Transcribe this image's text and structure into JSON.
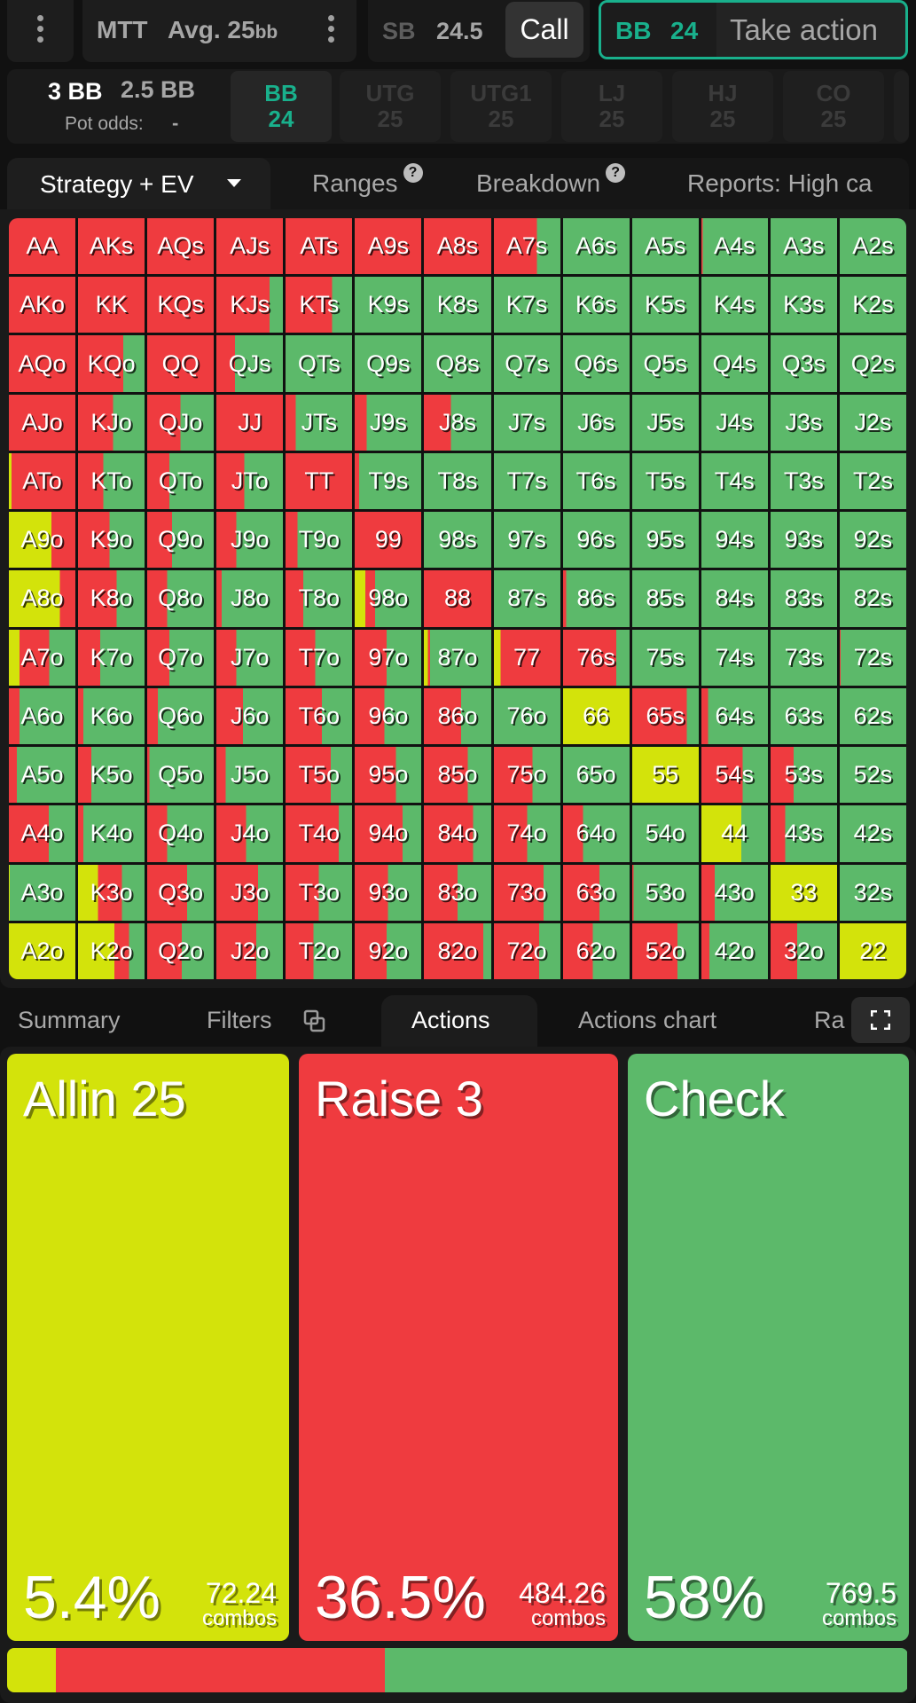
{
  "header": {
    "game_type": "MTT",
    "avg_stack": "Avg. 25",
    "avg_unit": "bb",
    "sb_label": "SB",
    "sb_stack": "24.5",
    "sb_action": "Call",
    "bb_label": "BB",
    "bb_stack": "24",
    "bb_action": "Take action"
  },
  "pot": {
    "pot_size": "3 BB",
    "to_call": "2.5 BB",
    "pot_odds_label": "Pot odds:",
    "pot_odds_value": "-"
  },
  "positions": [
    {
      "name": "BB",
      "stack": "24",
      "active": true
    },
    {
      "name": "UTG",
      "stack": "25",
      "active": false
    },
    {
      "name": "UTG1",
      "stack": "25",
      "active": false
    },
    {
      "name": "LJ",
      "stack": "25",
      "active": false
    },
    {
      "name": "HJ",
      "stack": "25",
      "active": false
    },
    {
      "name": "CO",
      "stack": "25",
      "active": false
    }
  ],
  "tabs": {
    "strategy": "Strategy + EV",
    "ranges": "Ranges",
    "breakdown": "Breakdown",
    "reports": "Reports: High ca",
    "help": "?"
  },
  "colors": {
    "allin": "#d3e30b",
    "raise": "#ef3b3f",
    "check": "#5cb96a",
    "accent": "#19b08c"
  },
  "grid": [
    [
      [
        "AA",
        0,
        100,
        0
      ],
      [
        "AKs",
        0,
        100,
        0
      ],
      [
        "AQs",
        0,
        100,
        0
      ],
      [
        "AJs",
        0,
        100,
        0
      ],
      [
        "ATs",
        0,
        100,
        0
      ],
      [
        "A9s",
        0,
        100,
        0
      ],
      [
        "A8s",
        0,
        100,
        0
      ],
      [
        "A7s",
        0,
        65,
        35
      ],
      [
        "A6s",
        0,
        0,
        100
      ],
      [
        "A5s",
        0,
        0,
        100
      ],
      [
        "A4s",
        0,
        2,
        98
      ],
      [
        "A3s",
        0,
        0,
        100
      ],
      [
        "A2s",
        0,
        0,
        100
      ]
    ],
    [
      [
        "AKo",
        0,
        100,
        0
      ],
      [
        "KK",
        0,
        100,
        0
      ],
      [
        "KQs",
        0,
        100,
        0
      ],
      [
        "KJs",
        0,
        80,
        20
      ],
      [
        "KTs",
        0,
        70,
        30
      ],
      [
        "K9s",
        0,
        0,
        100
      ],
      [
        "K8s",
        0,
        0,
        100
      ],
      [
        "K7s",
        0,
        0,
        100
      ],
      [
        "K6s",
        0,
        0,
        100
      ],
      [
        "K5s",
        0,
        0,
        100
      ],
      [
        "K4s",
        0,
        0,
        100
      ],
      [
        "K3s",
        0,
        0,
        100
      ],
      [
        "K2s",
        0,
        0,
        100
      ]
    ],
    [
      [
        "AQo",
        0,
        100,
        0
      ],
      [
        "KQo",
        0,
        68,
        32
      ],
      [
        "QQ",
        0,
        100,
        0
      ],
      [
        "QJs",
        0,
        28,
        72
      ],
      [
        "QTs",
        0,
        0,
        100
      ],
      [
        "Q9s",
        0,
        0,
        100
      ],
      [
        "Q8s",
        0,
        0,
        100
      ],
      [
        "Q7s",
        0,
        0,
        100
      ],
      [
        "Q6s",
        0,
        0,
        100
      ],
      [
        "Q5s",
        0,
        0,
        100
      ],
      [
        "Q4s",
        0,
        0,
        100
      ],
      [
        "Q3s",
        0,
        0,
        100
      ],
      [
        "Q2s",
        0,
        0,
        100
      ]
    ],
    [
      [
        "AJo",
        0,
        100,
        0
      ],
      [
        "KJo",
        0,
        53,
        47
      ],
      [
        "QJo",
        0,
        50,
        50
      ],
      [
        "JJ",
        0,
        100,
        0
      ],
      [
        "JTs",
        0,
        15,
        85
      ],
      [
        "J9s",
        0,
        18,
        82
      ],
      [
        "J8s",
        0,
        40,
        60
      ],
      [
        "J7s",
        0,
        0,
        100
      ],
      [
        "J6s",
        0,
        0,
        100
      ],
      [
        "J5s",
        0,
        0,
        100
      ],
      [
        "J4s",
        0,
        0,
        100
      ],
      [
        "J3s",
        0,
        0,
        100
      ],
      [
        "J2s",
        0,
        0,
        100
      ]
    ],
    [
      [
        "ATo",
        4,
        96,
        0
      ],
      [
        "KTo",
        0,
        38,
        62
      ],
      [
        "QTo",
        0,
        33,
        67
      ],
      [
        "JTo",
        0,
        42,
        58
      ],
      [
        "TT",
        0,
        100,
        0
      ],
      [
        "T9s",
        0,
        7,
        93
      ],
      [
        "T8s",
        0,
        0,
        100
      ],
      [
        "T7s",
        0,
        0,
        100
      ],
      [
        "T6s",
        0,
        0,
        100
      ],
      [
        "T5s",
        0,
        0,
        100
      ],
      [
        "T4s",
        0,
        0,
        100
      ],
      [
        "T3s",
        0,
        0,
        100
      ],
      [
        "T2s",
        0,
        0,
        100
      ]
    ],
    [
      [
        "A9o",
        64,
        36,
        0
      ],
      [
        "K9o",
        0,
        47,
        53
      ],
      [
        "Q9o",
        0,
        37,
        63
      ],
      [
        "J9o",
        0,
        30,
        70
      ],
      [
        "T9o",
        0,
        18,
        82
      ],
      [
        "99",
        0,
        100,
        0
      ],
      [
        "98s",
        0,
        0,
        100
      ],
      [
        "97s",
        0,
        0,
        100
      ],
      [
        "96s",
        0,
        0,
        100
      ],
      [
        "95s",
        0,
        0,
        100
      ],
      [
        "94s",
        0,
        0,
        100
      ],
      [
        "93s",
        0,
        0,
        100
      ],
      [
        "92s",
        0,
        0,
        100
      ]
    ],
    [
      [
        "A8o",
        77,
        23,
        0
      ],
      [
        "K8o",
        0,
        58,
        42
      ],
      [
        "Q8o",
        0,
        30,
        70
      ],
      [
        "J8o",
        0,
        8,
        92
      ],
      [
        "T8o",
        0,
        27,
        73
      ],
      [
        "98o",
        16,
        15,
        69
      ],
      [
        "88",
        0,
        100,
        0
      ],
      [
        "87s",
        0,
        0,
        100
      ],
      [
        "86s",
        0,
        5,
        95
      ],
      [
        "85s",
        0,
        0,
        100
      ],
      [
        "84s",
        0,
        0,
        100
      ],
      [
        "83s",
        0,
        0,
        100
      ],
      [
        "82s",
        0,
        0,
        100
      ]
    ],
    [
      [
        "A7o",
        16,
        45,
        39
      ],
      [
        "K7o",
        0,
        33,
        67
      ],
      [
        "Q7o",
        0,
        33,
        67
      ],
      [
        "J7o",
        0,
        30,
        70
      ],
      [
        "T7o",
        0,
        45,
        55
      ],
      [
        "97o",
        0,
        48,
        52
      ],
      [
        "87o",
        6,
        3,
        91
      ],
      [
        "77",
        10,
        90,
        0
      ],
      [
        "76s",
        0,
        80,
        20
      ],
      [
        "75s",
        0,
        0,
        100
      ],
      [
        "74s",
        0,
        0,
        100
      ],
      [
        "73s",
        0,
        0,
        100
      ],
      [
        "72s",
        0,
        1,
        99
      ]
    ],
    [
      [
        "A6o",
        0,
        16,
        84
      ],
      [
        "K6o",
        0,
        8,
        92
      ],
      [
        "Q6o",
        0,
        16,
        84
      ],
      [
        "J6o",
        0,
        40,
        60
      ],
      [
        "T6o",
        0,
        55,
        45
      ],
      [
        "96o",
        0,
        45,
        55
      ],
      [
        "86o",
        0,
        55,
        45
      ],
      [
        "76o",
        0,
        0,
        100
      ],
      [
        "66",
        100,
        0,
        0
      ],
      [
        "65s",
        0,
        82,
        18
      ],
      [
        "64s",
        0,
        10,
        90
      ],
      [
        "63s",
        0,
        0,
        100
      ],
      [
        "62s",
        0,
        0,
        100
      ]
    ],
    [
      [
        "A5o",
        0,
        12,
        88
      ],
      [
        "K5o",
        0,
        20,
        80
      ],
      [
        "Q5o",
        0,
        3,
        97
      ],
      [
        "J5o",
        0,
        14,
        86
      ],
      [
        "T5o",
        0,
        68,
        32
      ],
      [
        "95o",
        0,
        62,
        38
      ],
      [
        "85o",
        0,
        65,
        35
      ],
      [
        "75o",
        0,
        58,
        42
      ],
      [
        "65o",
        0,
        0,
        100
      ],
      [
        "55",
        100,
        0,
        0
      ],
      [
        "54s",
        0,
        62,
        38
      ],
      [
        "53s",
        0,
        35,
        65
      ],
      [
        "52s",
        0,
        0,
        100
      ]
    ],
    [
      [
        "A4o",
        0,
        60,
        40
      ],
      [
        "K4o",
        0,
        8,
        92
      ],
      [
        "Q4o",
        0,
        30,
        70
      ],
      [
        "J4o",
        0,
        45,
        55
      ],
      [
        "T4o",
        0,
        80,
        20
      ],
      [
        "94o",
        0,
        72,
        28
      ],
      [
        "84o",
        0,
        73,
        27
      ],
      [
        "74o",
        0,
        50,
        50
      ],
      [
        "64o",
        0,
        30,
        70
      ],
      [
        "54o",
        0,
        0,
        100
      ],
      [
        "44",
        60,
        0,
        40
      ],
      [
        "43s",
        0,
        22,
        78
      ],
      [
        "42s",
        0,
        0,
        100
      ]
    ],
    [
      [
        "A3o",
        1,
        0,
        99
      ],
      [
        "K3o",
        30,
        36,
        34
      ],
      [
        "Q3o",
        0,
        60,
        40
      ],
      [
        "J3o",
        0,
        63,
        37
      ],
      [
        "T3o",
        0,
        50,
        50
      ],
      [
        "93o",
        0,
        50,
        50
      ],
      [
        "83o",
        0,
        50,
        50
      ],
      [
        "73o",
        0,
        75,
        25
      ],
      [
        "63o",
        0,
        55,
        45
      ],
      [
        "53o",
        0,
        2,
        98
      ],
      [
        "43o",
        0,
        20,
        80
      ],
      [
        "33",
        100,
        0,
        0
      ],
      [
        "32s",
        0,
        0,
        100
      ]
    ],
    [
      [
        "A2o",
        100,
        0,
        0
      ],
      [
        "K2o",
        55,
        22,
        23
      ],
      [
        "Q2o",
        0,
        52,
        48
      ],
      [
        "J2o",
        0,
        60,
        40
      ],
      [
        "T2o",
        0,
        42,
        58
      ],
      [
        "92o",
        0,
        48,
        52
      ],
      [
        "82o",
        0,
        88,
        12
      ],
      [
        "72o",
        0,
        68,
        32
      ],
      [
        "62o",
        0,
        45,
        55
      ],
      [
        "52o",
        0,
        68,
        32
      ],
      [
        "42o",
        0,
        12,
        88
      ],
      [
        "32o",
        0,
        40,
        60
      ],
      [
        "22",
        100,
        0,
        0
      ]
    ]
  ],
  "bottom_tabs": {
    "summary": "Summary",
    "filters": "Filters",
    "actions": "Actions",
    "actions_chart": "Actions chart",
    "ranges_partial": "Ra"
  },
  "actions": [
    {
      "name": "Allin 25",
      "percent": "5.4%",
      "combos": "72.24",
      "combos_label": "combos",
      "share": 5.4
    },
    {
      "name": "Raise 3",
      "percent": "36.5%",
      "combos": "484.26",
      "combos_label": "combos",
      "share": 36.5
    },
    {
      "name": "Check",
      "percent": "58%",
      "combos": "769.5",
      "combos_label": "combos",
      "share": 58
    }
  ]
}
